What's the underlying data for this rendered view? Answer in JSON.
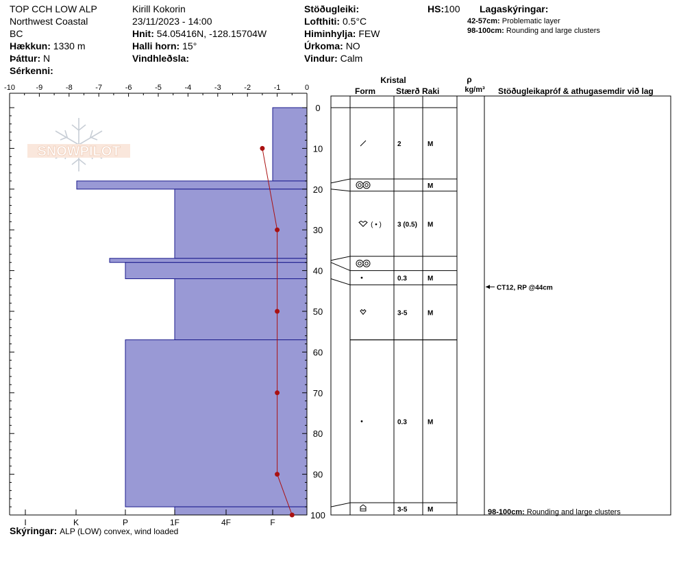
{
  "header": {
    "site_name": "TOP CCH LOW ALP",
    "region": "Northwest Coastal",
    "province": "BC",
    "elevation_label": "Hækkun:",
    "elevation_value": "1330 m",
    "aspect_label": "Þáttur:",
    "aspect_value": "N",
    "specifics_label": "Sérkenni:",
    "observer": "Kirill Kokorin",
    "datetime": "23/11/2023 - 14:00",
    "coords_label": "Hnit:",
    "coords_value": "54.05416N, -128.15704W",
    "slope_label": "Halli horn:",
    "slope_value": "15°",
    "wind_loading_label": "Vindhleðsla:",
    "stability_label": "Stöðugleiki:",
    "air_temp_label": "Lofthiti:",
    "air_temp_value": "0.5°C",
    "sky_label": "Himinhylja:",
    "sky_value": "FEW",
    "precip_label": "Úrkoma:",
    "precip_value": "NO",
    "wind_label": "Vindur:",
    "wind_value": "Calm",
    "hs_label": "HS:",
    "hs_value": "100",
    "legend_title": "Lagaskýringar:",
    "legend_items": [
      {
        "range": "42-57cm:",
        "text": "Problematic layer"
      },
      {
        "range": "98-100cm:",
        "text": "Rounding and large clusters"
      }
    ]
  },
  "logo_text": "SNOWPILOT",
  "footer": {
    "notes_label": "Skýringar:",
    "notes_value": "ALP (LOW) convex, wind loaded"
  },
  "table": {
    "crystal_header": "Kristal",
    "form_header": "Form",
    "size_header": "Stærð",
    "moisture_header": "Raki",
    "density_symbol": "ρ",
    "density_unit": "kg/m³",
    "comments_header": "Stöðugleikapróf & athugasemdir við lag",
    "test_result": "CT12, RP @44cm",
    "bottom_note_range": "98-100cm:",
    "bottom_note_text": "Rounding and large clusters"
  },
  "chart_data": {
    "type": "snow-profile",
    "x_top_ticks": [
      "-10",
      "-9",
      "-8",
      "-7",
      "-6",
      "-5",
      "-4",
      "-3",
      "-2",
      "-1",
      "0"
    ],
    "x_bottom_ticks": [
      "I",
      "K",
      "P",
      "1F",
      "4F",
      "F"
    ],
    "y_ticks": [
      0,
      10,
      20,
      30,
      40,
      50,
      60,
      70,
      80,
      90,
      100
    ],
    "depth_range": [
      0,
      100
    ],
    "temperature_range": [
      -10,
      0
    ],
    "hardness_layers": [
      {
        "top": 0,
        "bottom": 18,
        "hardness": "F"
      },
      {
        "top": 18,
        "bottom": 20,
        "hardness": "K-"
      },
      {
        "top": 20,
        "bottom": 37,
        "hardness": "1F"
      },
      {
        "top": 37,
        "bottom": 38,
        "hardness": "K+"
      },
      {
        "top": 38,
        "bottom": 42,
        "hardness": "P"
      },
      {
        "top": 42,
        "bottom": 57,
        "hardness": "1F"
      },
      {
        "top": 57,
        "bottom": 98,
        "hardness": "P"
      },
      {
        "top": 98,
        "bottom": 100,
        "hardness": "1F"
      }
    ],
    "temperature_profile": [
      {
        "depth": 10,
        "temp": -1.5
      },
      {
        "depth": 30,
        "temp": -1.0
      },
      {
        "depth": 50,
        "temp": -1.0
      },
      {
        "depth": 70,
        "temp": -1.0
      },
      {
        "depth": 90,
        "temp": -1.0
      },
      {
        "depth": 100,
        "temp": -0.5
      }
    ],
    "layer_table": [
      {
        "top": 0,
        "bottom": 17.5,
        "form": "slash",
        "size": "2",
        "moisture": "M"
      },
      {
        "top": 17.5,
        "bottom": 20.5,
        "form": "rounds",
        "size": "",
        "moisture": "M"
      },
      {
        "top": 20.5,
        "bottom": 36.5,
        "form": "facet-dot",
        "size": "3 (0.5)",
        "moisture": "M"
      },
      {
        "top": 36.5,
        "bottom": 40,
        "form": "rounds",
        "size": "",
        "moisture": ""
      },
      {
        "top": 40,
        "bottom": 43.5,
        "form": "dot",
        "size": "0.3",
        "moisture": "M"
      },
      {
        "top": 43.5,
        "bottom": 57,
        "form": "facet",
        "size": "3-5",
        "moisture": "M"
      },
      {
        "top": 57,
        "bottom": 97,
        "form": "dot",
        "size": "0.3",
        "moisture": "M"
      },
      {
        "top": 97,
        "bottom": 100,
        "form": "cup",
        "size": "3-5",
        "moisture": "M"
      }
    ],
    "colors": {
      "fill": "#9999d5",
      "edge": "#1a1a8c",
      "temp": "#aa1111"
    }
  }
}
